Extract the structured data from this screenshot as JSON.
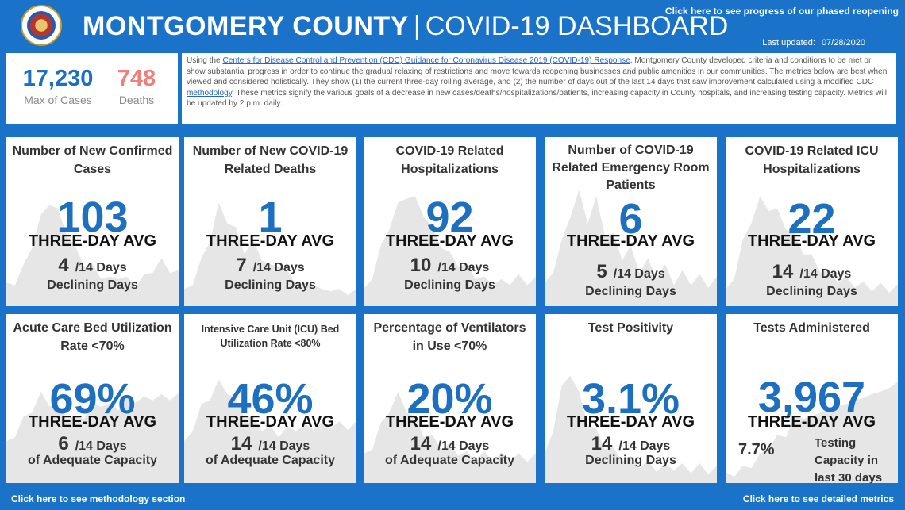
{
  "header": {
    "title_bold": "MONTGOMERY COUNTY",
    "separator": "|",
    "title_light": "COVID-19 DASHBOARD",
    "phase_link": "Click here to see progress of our phased reopening",
    "updated_label": "Last updated:",
    "updated_date": "07/28/2020"
  },
  "totals": {
    "cases_value": "17,230",
    "cases_label": "Max of Cases",
    "deaths_value": "748",
    "deaths_label": "Deaths"
  },
  "info": {
    "p1": "Using the ",
    "link1": "Centers for Disease Control and Prevention (CDC) Guidance for Coronavirus Disease 2019 (COVID-19) Response",
    "p2": ", Montgomery County developed criteria and conditions to be met or show substantial progress in order to continue the gradual relaxing of restrictions and move towards reopening businesses and public amenities in our communities. The metrics below are best when viewed and considered holistically. They show (1) the current three-day rolling average, and (2) the number of days out of the last 14 days that saw improvement calculated using a modified CDC ",
    "link2": "methodology",
    "p3": ". These metrics signify the various goals of a decrease in new cases/deaths/hospitalizations/patients, increasing capacity in County hospitals, and increasing testing capacity. Metrics will be updated by 2 p.m. daily."
  },
  "cards": [
    {
      "title": "Number of New Confirmed Cases",
      "value": "103",
      "avg": "THREE-DAY AVG",
      "days": "4",
      "of": "/14 Days",
      "foot": "Declining Days"
    },
    {
      "title": "Number of New COVID-19 Related Deaths",
      "value": "1",
      "avg": "THREE-DAY AVG",
      "days": "7",
      "of": "/14 Days",
      "foot": "Declining Days"
    },
    {
      "title": "COVID-19 Related Hospitalizations",
      "value": "92",
      "avg": "THREE-DAY AVG",
      "days": "10",
      "of": "/14 Days",
      "foot": "Declining Days"
    },
    {
      "title": "Number of COVID-19 Related Emergency Room Patients",
      "value": "6",
      "avg": "THREE-DAY AVG",
      "days": "5",
      "of": "/14 Days",
      "foot": "Declining Days"
    },
    {
      "title": "COVID-19 Related ICU Hospitalizations",
      "value": "22",
      "avg": "THREE-DAY AVG",
      "days": "14",
      "of": "/14 Days",
      "foot": "Declining Days"
    },
    {
      "title": "Acute Care Bed Utilization Rate <70%",
      "value": "69%",
      "avg": "THREE-DAY AVG",
      "days": "6",
      "of": "/14 Days",
      "foot": "of Adequate Capacity"
    },
    {
      "title": "Intensive Care Unit (ICU) Bed Utilization Rate <80%",
      "value": "46%",
      "avg": "THREE-DAY AVG",
      "days": "14",
      "of": "/14 Days",
      "foot": "of Adequate Capacity"
    },
    {
      "title": "Percentage of  Ventilators in Use <70%",
      "value": "20%",
      "avg": "THREE-DAY AVG",
      "days": "14",
      "of": "/14 Days",
      "foot": "of Adequate Capacity"
    },
    {
      "title": "Test Positivity",
      "value": "3.1%",
      "avg": "THREE-DAY AVG",
      "days": "14",
      "of": "/14 Days",
      "foot": "Declining Days"
    },
    {
      "title": "Tests Administered",
      "value": "3,967",
      "avg": "THREE-DAY AVG",
      "extra_value": "7.7%",
      "extra_label": "Testing Capacity in last 30 days"
    }
  ],
  "footer": {
    "methodology_link": "Click here to see methodology section",
    "metrics_link": "Click here to see detailed metrics"
  },
  "colors": {
    "background": "#1a73c9",
    "accent_value": "#1d6fbf",
    "deaths": "#f07f7a",
    "sparkline": "#e6e6e6"
  }
}
